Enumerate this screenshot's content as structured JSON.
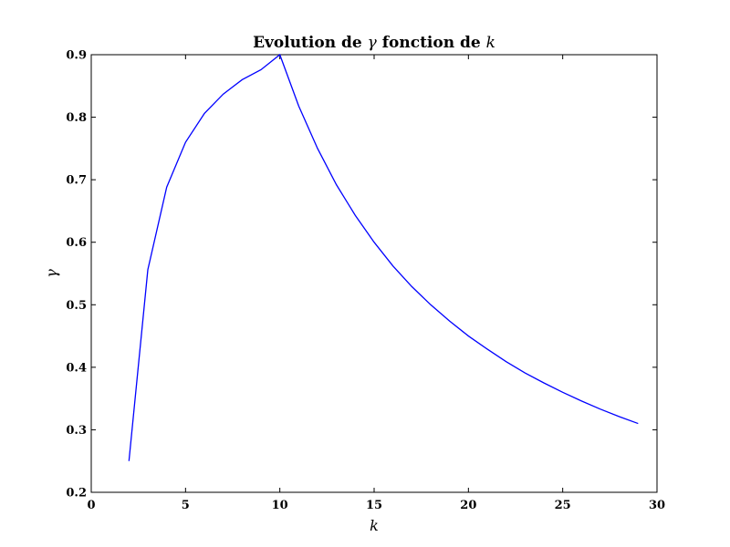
{
  "chart_data": {
    "type": "line",
    "title": {
      "prefix": "Evolution de ",
      "symbol1": "γ",
      "middle": " fonction de ",
      "symbol2": "k"
    },
    "xlabel": "k",
    "ylabel": "γ",
    "xlim": [
      0,
      30
    ],
    "ylim": [
      0.2,
      0.9
    ],
    "x_ticks": [
      "0",
      "5",
      "10",
      "15",
      "20",
      "25",
      "30"
    ],
    "y_ticks": [
      "0.2",
      "0.3",
      "0.4",
      "0.5",
      "0.6",
      "0.7",
      "0.8",
      "0.9"
    ],
    "grid": false,
    "series": [
      {
        "color": "#0000ff",
        "x": [
          2,
          3,
          4,
          5,
          6,
          7,
          8,
          9,
          10,
          11,
          12,
          13,
          14,
          15,
          16,
          17,
          18,
          19,
          20,
          21,
          22,
          23,
          24,
          25,
          26,
          27,
          28,
          29
        ],
        "y": [
          0.25,
          0.556,
          0.688,
          0.76,
          0.806,
          0.837,
          0.86,
          0.876,
          0.9,
          0.818,
          0.75,
          0.692,
          0.643,
          0.6,
          0.562,
          0.529,
          0.5,
          0.474,
          0.45,
          0.429,
          0.409,
          0.391,
          0.375,
          0.36,
          0.346,
          0.333,
          0.321,
          0.31
        ]
      }
    ]
  }
}
